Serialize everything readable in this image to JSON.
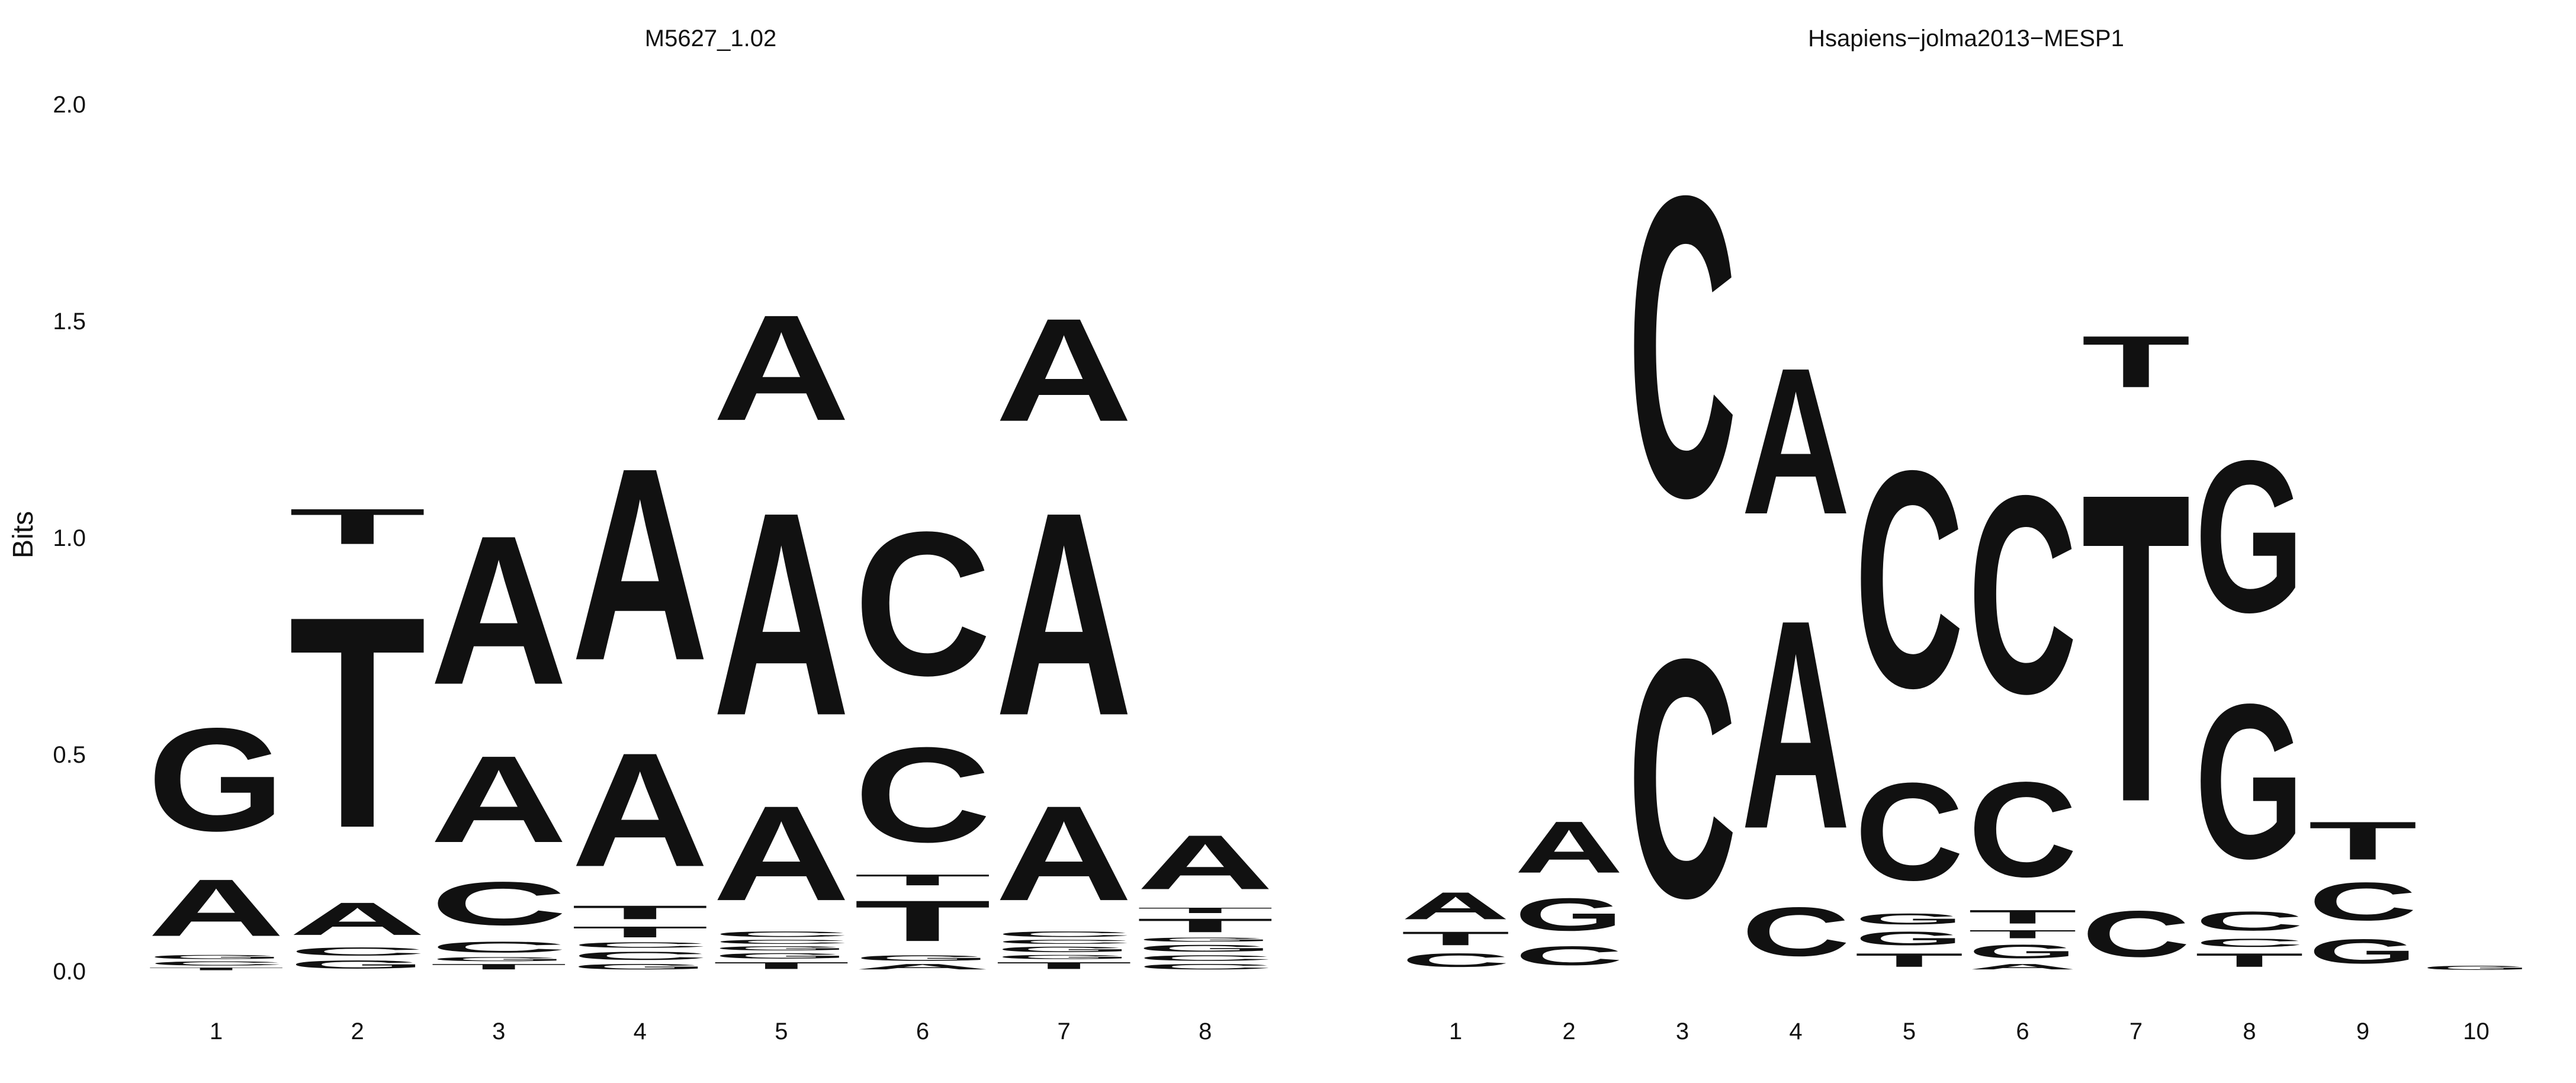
{
  "chart_data": [
    {
      "type": "sequence-logo",
      "title": "M5627_1.02",
      "ylabel": "Bits",
      "xlabel": "",
      "ylim": [
        0,
        2
      ],
      "y_ticks": [
        "0.0",
        "0.5",
        "1.0",
        "1.5",
        "2.0"
      ],
      "positions": [
        "1",
        "2",
        "3",
        "4",
        "5",
        "6",
        "7",
        "8"
      ],
      "columns": [
        [
          [
            "T",
            0.01
          ],
          [
            "C",
            0.015
          ],
          [
            "G",
            0.015
          ],
          [
            "A",
            0.21
          ],
          [
            "G",
            0.38
          ]
        ],
        [
          [
            "G",
            0.03
          ],
          [
            "C",
            0.03
          ],
          [
            "A",
            0.12
          ],
          [
            "T",
            0.78
          ],
          [
            "T",
            0.13
          ]
        ],
        [
          [
            "T",
            0.02
          ],
          [
            "G",
            0.015
          ],
          [
            "C",
            0.04
          ],
          [
            "C",
            0.16
          ],
          [
            "A",
            0.32
          ],
          [
            "A",
            0.55
          ]
        ],
        [
          [
            "G",
            0.02
          ],
          [
            "C",
            0.03
          ],
          [
            "C",
            0.02
          ],
          [
            "T",
            0.04
          ],
          [
            "T",
            0.05
          ],
          [
            "A",
            0.42
          ],
          [
            "A",
            0.71
          ]
        ],
        [
          [
            "T",
            0.025
          ],
          [
            "G",
            0.02
          ],
          [
            "G",
            0.015
          ],
          [
            "C",
            0.015
          ],
          [
            "C",
            0.02
          ],
          [
            "A",
            0.35
          ],
          [
            "A",
            0.75
          ],
          [
            "A",
            0.39
          ]
        ],
        [
          [
            "A",
            0.02
          ],
          [
            "G",
            0.02
          ],
          [
            "T",
            0.15
          ],
          [
            "T",
            0.04
          ],
          [
            "C",
            0.35
          ],
          [
            "C",
            0.53
          ]
        ],
        [
          [
            "T",
            0.025
          ],
          [
            "G",
            0.015
          ],
          [
            "G",
            0.02
          ],
          [
            "C",
            0.015
          ],
          [
            "C",
            0.02
          ],
          [
            "A",
            0.35
          ],
          [
            "A",
            0.75
          ],
          [
            "A",
            0.38
          ]
        ],
        [
          [
            "C",
            0.02
          ],
          [
            "C",
            0.02
          ],
          [
            "G",
            0.025
          ],
          [
            "G",
            0.015
          ],
          [
            "T",
            0.05
          ],
          [
            "T",
            0.02
          ],
          [
            "A",
            0.2
          ]
        ]
      ]
    },
    {
      "type": "sequence-logo",
      "title": "Hsapiens−jolma2013−MESP1",
      "ylabel": "",
      "xlabel": "",
      "ylim": [
        0,
        2
      ],
      "y_ticks": [],
      "positions": [
        "1",
        "2",
        "3",
        "4",
        "5",
        "6",
        "7",
        "8",
        "9",
        "10"
      ],
      "columns": [
        [
          [
            "C",
            0.05
          ],
          [
            "T",
            0.05
          ],
          [
            "A",
            0.1
          ]
        ],
        [
          [
            "C",
            0.07
          ],
          [
            "G",
            0.12
          ],
          [
            "A",
            0.19
          ]
        ],
        [
          [
            "C",
            0.88
          ],
          [
            "C",
            1.11
          ]
        ],
        [
          [
            "C",
            0.18
          ],
          [
            "A",
            0.77
          ],
          [
            "A",
            0.54
          ]
        ],
        [
          [
            "T",
            0.05
          ],
          [
            "G",
            0.05
          ],
          [
            "G",
            0.04
          ],
          [
            "C",
            0.36
          ],
          [
            "C",
            0.8
          ]
        ],
        [
          [
            "A",
            0.02
          ],
          [
            "G",
            0.05
          ],
          [
            "T",
            0.03
          ],
          [
            "T",
            0.05
          ],
          [
            "C",
            0.35
          ],
          [
            "C",
            0.73
          ]
        ],
        [
          [
            "C",
            0.17
          ],
          [
            "T",
            1.14
          ],
          [
            "T",
            0.19
          ]
        ],
        [
          [
            "T",
            0.05
          ],
          [
            "C",
            0.03
          ],
          [
            "C",
            0.07
          ],
          [
            "G",
            0.57
          ],
          [
            "G",
            0.56
          ]
        ],
        [
          [
            "G",
            0.09
          ],
          [
            "C",
            0.14
          ],
          [
            "T",
            0.14
          ]
        ],
        [
          [
            "G",
            0.015
          ]
        ]
      ]
    }
  ],
  "colors": {
    "A": "#109648",
    "C": "#255c99",
    "G": "#f7b32b",
    "T": "#d62839"
  }
}
